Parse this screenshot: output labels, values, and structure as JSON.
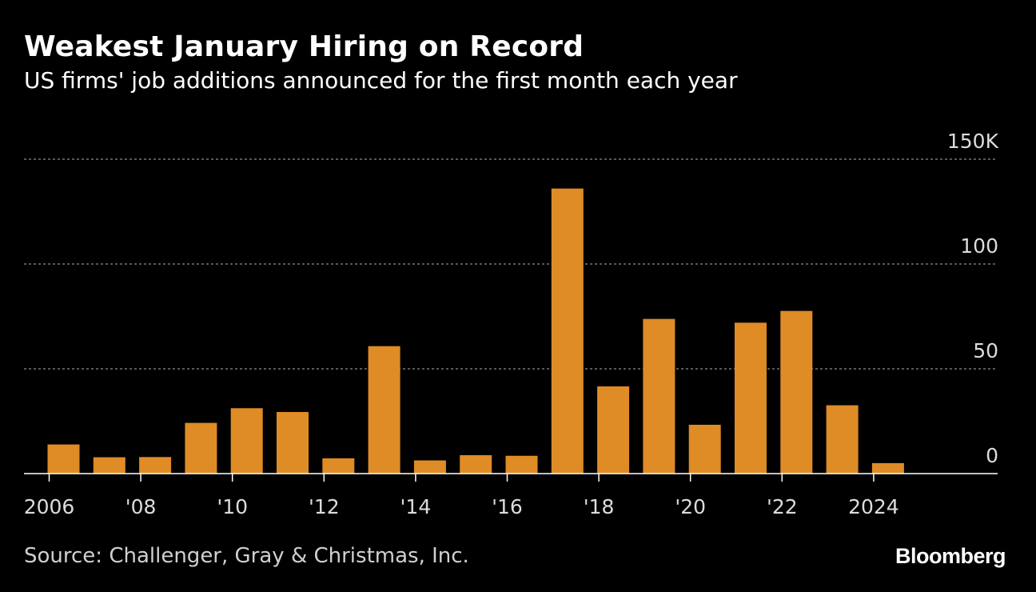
{
  "header": {
    "title": "Weakest January Hiring on Record",
    "subtitle": "US firms' job additions announced for the first month each year"
  },
  "footer": {
    "source": "Source: Challenger, Gray & Christmas, Inc.",
    "brand": "Bloomberg"
  },
  "colors": {
    "background": "#000000",
    "bar": "#df8b26",
    "grid": "#8c8c8c",
    "axis": "#ffffff",
    "tick_text": "#dcdcdc"
  },
  "chart_data": {
    "type": "bar",
    "title": "Weakest January Hiring on Record",
    "subtitle": "US firms' job additions announced for the first month each year",
    "xlabel": "",
    "ylabel": "",
    "categories": [
      "2006",
      "2007",
      "2008",
      "2009",
      "2010",
      "2011",
      "2012",
      "2013",
      "2014",
      "2015",
      "2016",
      "2017",
      "2018",
      "2019",
      "2020",
      "2021",
      "2022",
      "2023",
      "2024"
    ],
    "values": [
      13.9,
      7.8,
      7.9,
      24.2,
      31.2,
      29.4,
      7.3,
      60.8,
      6.3,
      8.8,
      8.5,
      136.0,
      41.6,
      73.8,
      23.3,
      72.0,
      77.6,
      32.6,
      5.0
    ],
    "ylim": [
      0,
      150
    ],
    "yticks": [
      0,
      50,
      100,
      150
    ],
    "ytick_labels": [
      "0",
      "50",
      "100",
      "150K"
    ],
    "xtick_years": [
      2006,
      2008,
      2010,
      2012,
      2014,
      2016,
      2018,
      2020,
      2022,
      2024
    ],
    "xtick_labels": [
      "2006",
      "'08",
      "'10",
      "'12",
      "'14",
      "'16",
      "'18",
      "'20",
      "'22",
      "2024"
    ],
    "grid": true,
    "source": "Source: Challenger, Gray & Christmas, Inc."
  }
}
